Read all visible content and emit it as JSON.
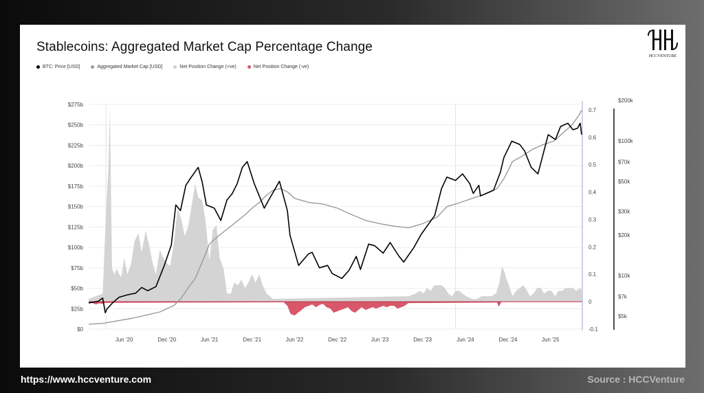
{
  "footer": {
    "website": "https://www.hccventure.com",
    "source": "Source : HCCVenture"
  },
  "logo": {
    "text": "HCCVENTURE"
  },
  "colors": {
    "btc": "#000000",
    "mcap": "#9a9a9a",
    "pos": "#d4d4d4",
    "neg": "#d9576a",
    "zero_line": "#c0283c"
  },
  "chart_data": {
    "type": "line",
    "title": "Stablecoins: Aggregated Market Cap Percentage Change",
    "legend": [
      {
        "label": "BTC: Price [USD]",
        "color": "#000000"
      },
      {
        "label": "Aggregated Market Cap [USD]",
        "color": "#9a9a9a"
      },
      {
        "label": "Net Position Change (+ve)",
        "color": "#cfcfcf"
      },
      {
        "label": "Net Position Change (-ve)",
        "color": "#d9576a"
      }
    ],
    "x_ticks": [
      "Jun '20",
      "Dec '20",
      "Jun '21",
      "Dec '21",
      "Jun '22",
      "Dec '22",
      "Jun '23",
      "Dec '23",
      "Jun '24",
      "Dec '24",
      "Jun '25"
    ],
    "x_tick_dates": [
      "2020-06-01",
      "2020-12-01",
      "2021-06-01",
      "2021-12-01",
      "2022-06-01",
      "2022-12-01",
      "2023-06-01",
      "2023-12-01",
      "2024-06-01",
      "2024-12-01",
      "2025-06-01"
    ],
    "x_range": [
      "2020-01-01",
      "2025-10-15"
    ],
    "left_axis": {
      "ticks": [
        "$0",
        "$25b",
        "$50b",
        "$75b",
        "$100b",
        "$125b",
        "$150b",
        "$175b",
        "$200b",
        "$225b",
        "$250b",
        "$275b"
      ],
      "values": [
        0,
        25,
        50,
        75,
        100,
        125,
        150,
        175,
        200,
        225,
        250,
        275
      ],
      "range": [
        0,
        275
      ]
    },
    "mid_axis": {
      "ticks": [
        "-0.1",
        "0",
        "0.1",
        "0.2",
        "0.3",
        "0.4",
        "0.5",
        "0.6",
        "0.7"
      ],
      "values": [
        -0.1,
        0,
        0.1,
        0.2,
        0.3,
        0.4,
        0.5,
        0.6,
        0.7
      ],
      "range": [
        -0.1,
        0.72
      ]
    },
    "right_axis": {
      "scale": "log",
      "ticks": [
        "$5k",
        "$7k",
        "$10k",
        "$20k",
        "$30k",
        "$50k",
        "$70k",
        "$100k",
        "$200k"
      ],
      "values": [
        5000,
        7000,
        10000,
        20000,
        30000,
        50000,
        70000,
        100000,
        200000
      ]
    },
    "series": [
      {
        "name": "BTC: Price [USD]",
        "axis": "left-b",
        "x": [
          "2020-01-01",
          "2020-02-10",
          "2020-03-01",
          "2020-03-12",
          "2020-03-20",
          "2020-04-15",
          "2020-05-10",
          "2020-06-15",
          "2020-07-20",
          "2020-08-15",
          "2020-09-10",
          "2020-10-15",
          "2020-11-20",
          "2020-12-20",
          "2021-01-08",
          "2021-01-28",
          "2021-02-20",
          "2021-03-13",
          "2021-04-14",
          "2021-05-01",
          "2021-05-19",
          "2021-06-22",
          "2021-07-20",
          "2021-08-15",
          "2021-09-07",
          "2021-09-28",
          "2021-10-20",
          "2021-11-10",
          "2021-12-10",
          "2022-01-22",
          "2022-02-10",
          "2022-03-28",
          "2022-05-01",
          "2022-05-12",
          "2022-06-18",
          "2022-07-30",
          "2022-08-15",
          "2022-09-15",
          "2022-10-20",
          "2022-11-09",
          "2022-12-20",
          "2023-01-20",
          "2023-02-20",
          "2023-03-10",
          "2023-04-14",
          "2023-05-10",
          "2023-06-15",
          "2023-07-15",
          "2023-08-20",
          "2023-09-11",
          "2023-10-25",
          "2023-11-25",
          "2023-12-20",
          "2024-01-22",
          "2024-02-20",
          "2024-03-14",
          "2024-04-20",
          "2024-05-20",
          "2024-06-20",
          "2024-07-05",
          "2024-07-29",
          "2024-08-05",
          "2024-09-06",
          "2024-09-30",
          "2024-10-29",
          "2024-11-13",
          "2024-12-17",
          "2025-01-20",
          "2025-02-10",
          "2025-03-10",
          "2025-04-08",
          "2025-05-22",
          "2025-06-22",
          "2025-07-14",
          "2025-08-14",
          "2025-09-05",
          "2025-09-25",
          "2025-10-06",
          "2025-10-12"
        ],
        "values": [
          32,
          34,
          38,
          20,
          25,
          33,
          39,
          42,
          44,
          51,
          47,
          52,
          78,
          103,
          152,
          145,
          176,
          185,
          198,
          180,
          152,
          148,
          133,
          158,
          166,
          178,
          198,
          205,
          178,
          148,
          158,
          181,
          145,
          115,
          78,
          92,
          94,
          75,
          78,
          68,
          62,
          72,
          89,
          73,
          104,
          102,
          93,
          106,
          90,
          82,
          100,
          116,
          126,
          139,
          172,
          186,
          182,
          190,
          178,
          166,
          176,
          163,
          167,
          170,
          192,
          210,
          230,
          226,
          218,
          198,
          190,
          238,
          232,
          248,
          252,
          244,
          246,
          252,
          238
        ]
      },
      {
        "name": "Aggregated Market Cap [USD]",
        "axis": "left",
        "x": [
          "2020-01-01",
          "2020-03-01",
          "2020-05-01",
          "2020-07-01",
          "2020-09-01",
          "2020-11-01",
          "2021-01-01",
          "2021-02-01",
          "2021-03-01",
          "2021-04-01",
          "2021-05-01",
          "2021-06-01",
          "2021-07-01",
          "2021-08-01",
          "2021-09-01",
          "2021-10-01",
          "2021-11-01",
          "2021-12-01",
          "2022-01-01",
          "2022-02-01",
          "2022-03-01",
          "2022-04-01",
          "2022-05-01",
          "2022-06-01",
          "2022-08-01",
          "2022-10-01",
          "2022-12-01",
          "2023-02-01",
          "2023-04-01",
          "2023-06-01",
          "2023-08-01",
          "2023-10-01",
          "2023-12-01",
          "2024-02-01",
          "2024-03-15",
          "2024-05-01",
          "2024-07-01",
          "2024-09-01",
          "2024-10-15",
          "2024-11-15",
          "2024-12-20",
          "2025-02-01",
          "2025-03-15",
          "2025-05-01",
          "2025-06-15",
          "2025-08-01",
          "2025-09-01",
          "2025-10-01",
          "2025-10-12"
        ],
        "values": [
          6,
          7,
          10,
          13,
          17,
          21,
          29,
          38,
          50,
          62,
          82,
          104,
          112,
          119,
          126,
          133,
          140,
          148,
          155,
          164,
          170,
          172,
          168,
          160,
          155,
          153,
          148,
          140,
          133,
          129,
          126,
          124,
          129,
          137,
          150,
          154,
          160,
          166,
          172,
          185,
          205,
          212,
          220,
          226,
          230,
          242,
          250,
          262,
          268
        ]
      },
      {
        "name": "Net Position Change (+ve)",
        "axis": "mid",
        "x": [
          "2020-01-01",
          "2020-02-01",
          "2020-03-01",
          "2020-03-15",
          "2020-03-25",
          "2020-04-01",
          "2020-04-10",
          "2020-04-20",
          "2020-05-01",
          "2020-05-10",
          "2020-05-20",
          "2020-06-01",
          "2020-06-15",
          "2020-07-01",
          "2020-07-15",
          "2020-08-01",
          "2020-08-15",
          "2020-09-01",
          "2020-09-15",
          "2020-10-01",
          "2020-10-15",
          "2020-11-01",
          "2020-11-15",
          "2020-12-01",
          "2020-12-15",
          "2021-01-01",
          "2021-01-15",
          "2021-02-01",
          "2021-02-15",
          "2021-03-01",
          "2021-03-15",
          "2021-04-01",
          "2021-04-15",
          "2021-05-01",
          "2021-05-15",
          "2021-06-01",
          "2021-06-15",
          "2021-07-01",
          "2021-07-15",
          "2021-08-01",
          "2021-08-15",
          "2021-09-01",
          "2021-09-15",
          "2021-10-01",
          "2021-10-15",
          "2021-11-01",
          "2021-11-15",
          "2021-12-01",
          "2021-12-15",
          "2022-01-01",
          "2022-01-15",
          "2022-02-01",
          "2022-03-01",
          "2023-10-01",
          "2023-11-01",
          "2023-11-20",
          "2023-12-05",
          "2023-12-20",
          "2024-01-05",
          "2024-01-20",
          "2024-02-05",
          "2024-02-20",
          "2024-03-05",
          "2024-03-20",
          "2024-04-05",
          "2024-04-20",
          "2024-05-05",
          "2024-05-20",
          "2024-06-05",
          "2024-07-01",
          "2024-07-20",
          "2024-08-10",
          "2024-09-01",
          "2024-09-20",
          "2024-10-10",
          "2024-10-25",
          "2024-11-05",
          "2024-11-15",
          "2024-11-25",
          "2024-12-05",
          "2024-12-20",
          "2025-01-05",
          "2025-01-20",
          "2025-02-05",
          "2025-02-20",
          "2025-03-05",
          "2025-03-20",
          "2025-04-05",
          "2025-04-20",
          "2025-05-05",
          "2025-05-20",
          "2025-06-05",
          "2025-06-20",
          "2025-07-05",
          "2025-07-20",
          "2025-08-05",
          "2025-08-20",
          "2025-09-05",
          "2025-09-20",
          "2025-10-05",
          "2025-10-12"
        ],
        "values": [
          0.01,
          0.02,
          0.03,
          0.32,
          0.48,
          0.7,
          0.12,
          0.1,
          0.12,
          0.1,
          0.09,
          0.16,
          0.1,
          0.14,
          0.22,
          0.25,
          0.18,
          0.26,
          0.21,
          0.14,
          0.1,
          0.19,
          0.16,
          0.14,
          0.13,
          0.22,
          0.34,
          0.3,
          0.24,
          0.27,
          0.34,
          0.43,
          0.38,
          0.37,
          0.3,
          0.15,
          0.26,
          0.28,
          0.16,
          0.12,
          0.03,
          0.03,
          0.07,
          0.06,
          0.08,
          0.05,
          0.07,
          0.1,
          0.07,
          0.1,
          0.06,
          0.03,
          0.01,
          0.02,
          0.03,
          0.04,
          0.03,
          0.05,
          0.04,
          0.06,
          0.06,
          0.06,
          0.05,
          0.03,
          0.02,
          0.04,
          0.04,
          0.03,
          0.02,
          0.01,
          0.01,
          0.02,
          0.02,
          0.02,
          0.03,
          0.07,
          0.13,
          0.11,
          0.08,
          0.06,
          0.02,
          0.04,
          0.05,
          0.06,
          0.04,
          0.02,
          0.03,
          0.05,
          0.05,
          0.03,
          0.04,
          0.04,
          0.02,
          0.04,
          0.04,
          0.05,
          0.05,
          0.05,
          0.04,
          0.05,
          0.04
        ]
      },
      {
        "name": "Net Position Change (-ve)",
        "axis": "mid",
        "x": [
          "2020-01-01",
          "2020-01-15",
          "2020-02-01",
          "2020-02-15",
          "2020-03-01",
          "2020-03-10",
          "2022-04-15",
          "2022-05-01",
          "2022-05-15",
          "2022-06-01",
          "2022-06-15",
          "2022-07-01",
          "2022-07-15",
          "2022-08-01",
          "2022-08-15",
          "2022-09-01",
          "2022-09-15",
          "2022-10-01",
          "2022-10-15",
          "2022-11-01",
          "2022-11-15",
          "2022-12-01",
          "2022-12-15",
          "2023-01-01",
          "2023-01-15",
          "2023-02-01",
          "2023-02-15",
          "2023-03-01",
          "2023-03-15",
          "2023-04-01",
          "2023-04-15",
          "2023-05-01",
          "2023-05-15",
          "2023-06-01",
          "2023-06-15",
          "2023-07-01",
          "2023-07-15",
          "2023-08-01",
          "2023-08-15",
          "2023-09-01",
          "2023-09-15",
          "2023-10-01",
          "2024-10-15",
          "2024-10-22",
          "2024-11-01"
        ],
        "values": [
          -0.002,
          -0.004,
          -0.01,
          -0.006,
          -0.008,
          -0.004,
          -0.002,
          -0.015,
          -0.045,
          -0.05,
          -0.04,
          -0.03,
          -0.02,
          -0.015,
          -0.01,
          -0.02,
          -0.012,
          -0.008,
          -0.02,
          -0.025,
          -0.04,
          -0.035,
          -0.03,
          -0.025,
          -0.02,
          -0.035,
          -0.04,
          -0.03,
          -0.02,
          -0.03,
          -0.025,
          -0.02,
          -0.025,
          -0.02,
          -0.015,
          -0.02,
          -0.015,
          -0.015,
          -0.025,
          -0.02,
          -0.015,
          -0.005,
          -0.003,
          -0.018,
          -0.004
        ]
      }
    ],
    "grid": true,
    "legend_position": "top-left"
  }
}
